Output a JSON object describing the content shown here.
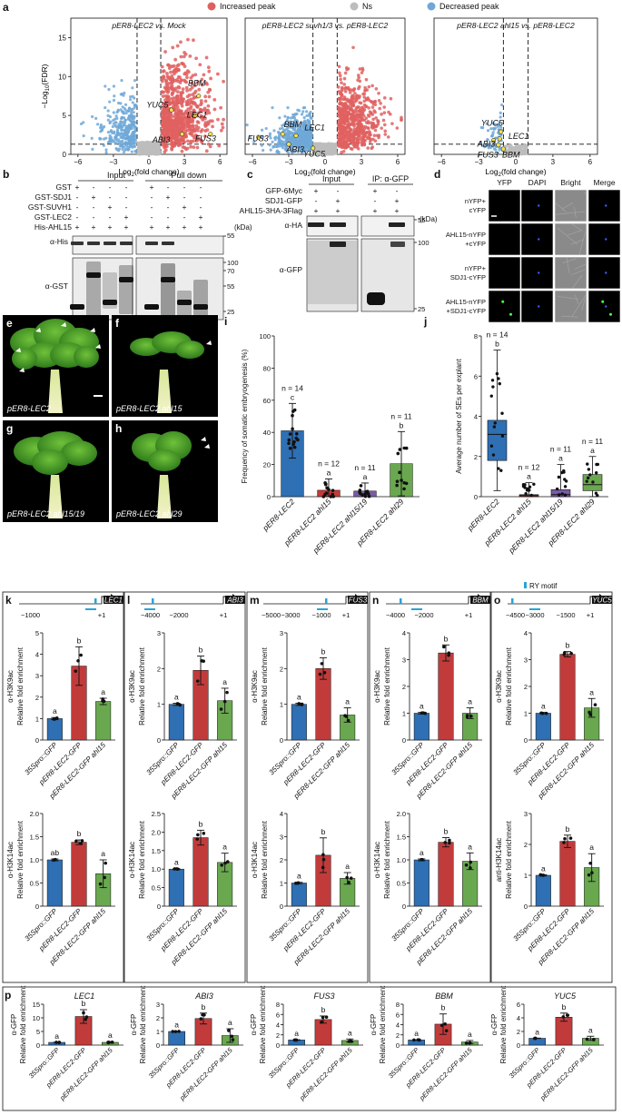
{
  "panels": {
    "a": {
      "label": "a",
      "legend": {
        "increased": "Increased peak",
        "ns": "Ns",
        "decreased": "Decreased peak"
      },
      "colors": {
        "increased": "#e06060",
        "ns": "#bdbdbd",
        "decreased": "#6fa8d8"
      },
      "ylabel_main": "−Log",
      "ylabel_sub": "10",
      "ylabel_tail": "(FDR)",
      "xlabel_main": "Log",
      "xlabel_sub": "2",
      "xlabel_tail": "(fold change)",
      "plots": [
        {
          "title": "pER8-LEC2 vs. Mock",
          "genes": [
            "BBM",
            "YUC5",
            "LEC1",
            "ABI3",
            "FUS3"
          ]
        },
        {
          "title": "pER8-LEC2 suvh1/3 vs. pER8-LEC2",
          "genes": [
            "BBM",
            "LEC1",
            "FUS3",
            "ABI3",
            "YUC5"
          ]
        },
        {
          "title": "pER8-LEC2 ahl15 vs. pER8-LEC2",
          "genes": [
            "YUC5",
            "LEC1",
            "ABI3",
            "FUS3",
            "BBM"
          ]
        }
      ],
      "xticks": [
        "−6",
        "−3",
        "0",
        "3",
        "6"
      ],
      "yticks": [
        "0",
        "5",
        "10",
        "15"
      ]
    },
    "b": {
      "label": "b",
      "rows": [
        "GST",
        "GST-SDJ1",
        "GST-SUVH1",
        "GST-LEC2",
        "His-AHL15"
      ],
      "signs": [
        [
          "+",
          "-",
          "-",
          "-"
        ],
        [
          "-",
          "+",
          "-",
          "-"
        ],
        [
          "-",
          "-",
          "+",
          "-"
        ],
        [
          "-",
          "-",
          "-",
          "+"
        ],
        [
          "+",
          "+",
          "+",
          "+"
        ]
      ],
      "headers": [
        "Input",
        "Pull down"
      ],
      "kda": "(kDa)",
      "blots": [
        "α-His",
        "α-GST"
      ],
      "markers_top": [
        "55"
      ],
      "markers": [
        "100",
        "70",
        "55",
        "25"
      ]
    },
    "c": {
      "label": "c",
      "rows": [
        "GFP-6Myc",
        "SDJ1-GFP",
        "AHL15-3HA-3Flag"
      ],
      "signs": [
        [
          "+",
          "-",
          "+",
          "-"
        ],
        [
          "-",
          "+",
          "-",
          "+"
        ],
        [
          "+",
          "+",
          "+",
          "+"
        ]
      ],
      "headers": [
        "Input",
        "IP: α-GFP"
      ],
      "kda": "(kDa)",
      "blots": [
        "α-HA",
        "α-GFP"
      ],
      "markers": [
        "55",
        "100",
        "25"
      ]
    },
    "d": {
      "label": "d",
      "cols": [
        "YFP",
        "DAPI",
        "Bright",
        "Merge"
      ],
      "rows": [
        [
          "nYFP+",
          "cYFP"
        ],
        [
          "AHL15-nYFP",
          "+cYFP"
        ],
        [
          "nYFP+",
          "SDJ1-cYFP"
        ],
        [
          "AHL15-nYFP",
          "+SDJ1-cYFP"
        ]
      ]
    },
    "efgh": [
      {
        "label": "e",
        "caption": "pER8-LEC2"
      },
      {
        "label": "f",
        "caption": "pER8-LEC2 ahl15"
      },
      {
        "label": "g",
        "caption": "pER8-LEC2 ahl15/19"
      },
      {
        "label": "h",
        "caption": "pER8-LEC2 ahl29"
      }
    ]
  },
  "chart_data": [
    {
      "panel": "i",
      "type": "bar",
      "ylabel": "Frequency of somatic embryogenesis (%)",
      "categories": [
        "pER8-LEC2",
        "pER8-LEC2 ahl15",
        "pER8-LEC2 ahl15/19",
        "pER8-LEC2 ahl29"
      ],
      "values": [
        41,
        4,
        3.5,
        20.5
      ],
      "errors": [
        17,
        7,
        5,
        20
      ],
      "letters": [
        "c",
        "a",
        "a",
        "b"
      ],
      "n": [
        "n = 14",
        "n = 12",
        "n = 11",
        "n = 11"
      ],
      "ylim": [
        0,
        100
      ],
      "yticks": [
        "0",
        "20",
        "40",
        "60",
        "80",
        "100"
      ],
      "colors": [
        "#2f6fb3",
        "#c23b3b",
        "#7b5aa6",
        "#6aa84f"
      ]
    },
    {
      "panel": "j",
      "type": "box",
      "ylabel": "Average number of SEs per explant",
      "categories": [
        "pER8-LEC2",
        "pER8-LEC2 ahl15",
        "pER8-LEC2 ahl15/19",
        "pER8-LEC2 ahl29"
      ],
      "box": [
        [
          1.8,
          3.1,
          3.8
        ],
        [
          0,
          0.05,
          0.1
        ],
        [
          0,
          0.1,
          0.35
        ],
        [
          0.3,
          0.6,
          1.1
        ]
      ],
      "whisker": [
        [
          0.3,
          7.3
        ],
        [
          0,
          0.7
        ],
        [
          0,
          1.6
        ],
        [
          0,
          2
        ]
      ],
      "letters": [
        "b",
        "a",
        "a",
        "a"
      ],
      "n": [
        "n = 14",
        "n = 12",
        "n = 11",
        "n = 11"
      ],
      "ylim": [
        0,
        8
      ],
      "yticks": [
        "0",
        "2",
        "4",
        "6",
        "8"
      ],
      "colors": [
        "#2f6fb3",
        "#c23b3b",
        "#7b5aa6",
        "#6aa84f"
      ]
    },
    {
      "panel": "k-o",
      "type": "bar",
      "categories": [
        "35Spro::GFP",
        "pER8-LEC2-GFP",
        "pER8-LEC2-GFP ahl15"
      ],
      "rymotif": "RY motif",
      "ylabel_sub": "Relative fold enrichment",
      "groups": [
        {
          "label": "k",
          "gene": "LEC1",
          "ticks": [
            "−1000",
            "+1"
          ],
          "h3k9": {
            "ylabel": "α-H3K9ac",
            "ylim": [
              0,
              5
            ],
            "yticks": [
              "0",
              "1",
              "2",
              "3",
              "4",
              "5"
            ],
            "values": [
              1,
              3.45,
              1.8
            ],
            "errors": [
              0.05,
              0.9,
              0.15
            ],
            "letters": [
              "a",
              "b",
              "a"
            ]
          },
          "h3k14": {
            "ylabel": "α-H3K14ac",
            "ylim": [
              0,
              2.0
            ],
            "yticks": [
              "0",
              "0.5",
              "1.0",
              "1.5",
              "2.0"
            ],
            "values": [
              1,
              1.38,
              0.7
            ],
            "errors": [
              0.02,
              0.05,
              0.3
            ],
            "letters": [
              "ab",
              "b",
              "a"
            ]
          }
        },
        {
          "label": "l",
          "gene": "ABI3",
          "ticks": [
            "−4000",
            "−2000",
            "+1"
          ],
          "h3k9": {
            "ylabel": "α-H3K9ac",
            "ylim": [
              0,
              3
            ],
            "yticks": [
              "0",
              "1",
              "2",
              "3"
            ],
            "values": [
              1,
              1.95,
              1.1
            ],
            "errors": [
              0.03,
              0.4,
              0.35
            ],
            "letters": [
              "a",
              "b",
              "a"
            ]
          },
          "h3k14": {
            "ylabel": "α-H3K14ac",
            "ylim": [
              0,
              2.5
            ],
            "yticks": [
              "0",
              "0.5",
              "1.0",
              "1.5",
              "2.0",
              "2.5"
            ],
            "values": [
              1,
              1.85,
              1.18
            ],
            "errors": [
              0.02,
              0.2,
              0.25
            ],
            "letters": [
              "a",
              "b",
              "a"
            ]
          }
        },
        {
          "label": "m",
          "gene": "FUS3",
          "ticks": [
            "−5000",
            "−3000",
            "−1000",
            "+1"
          ],
          "h3k9": {
            "ylabel": "α-H3K9ac",
            "ylim": [
              0,
              3
            ],
            "yticks": [
              "0",
              "1",
              "2",
              "3"
            ],
            "values": [
              1,
              2.0,
              0.7
            ],
            "errors": [
              0.03,
              0.3,
              0.2
            ],
            "letters": [
              "a",
              "b",
              "a"
            ]
          },
          "h3k14": {
            "ylabel": "α-H3K14ac",
            "ylim": [
              0,
              4
            ],
            "yticks": [
              "0",
              "1",
              "2",
              "3",
              "4"
            ],
            "values": [
              1,
              2.2,
              1.2
            ],
            "errors": [
              0.03,
              0.75,
              0.25
            ],
            "letters": [
              "a",
              "b",
              "a"
            ]
          }
        },
        {
          "label": "n",
          "gene": "BBM",
          "ticks": [
            "−4000",
            "−2000",
            "+1"
          ],
          "h3k9": {
            "ylabel": "α-H3K9ac",
            "ylim": [
              0,
              4
            ],
            "yticks": [
              "0",
              "1",
              "2",
              "3",
              "4"
            ],
            "values": [
              1,
              3.25,
              1.0
            ],
            "errors": [
              0.03,
              0.3,
              0.2
            ],
            "letters": [
              "a",
              "b",
              "a"
            ]
          },
          "h3k14": {
            "ylabel": "α-H3K14ac",
            "ylim": [
              0,
              2.0
            ],
            "yticks": [
              "0",
              "0.5",
              "1.0",
              "1.5",
              "2.0"
            ],
            "values": [
              1,
              1.38,
              0.97
            ],
            "errors": [
              0.02,
              0.1,
              0.18
            ],
            "letters": [
              "a",
              "b",
              "a"
            ]
          }
        },
        {
          "label": "o",
          "gene": "YUC5",
          "ticks": [
            "−4500",
            "−3000",
            "−1500",
            "+1"
          ],
          "h3k9": {
            "ylabel": "α-H3K9ac",
            "ylim": [
              0,
              4
            ],
            "yticks": [
              "0",
              "1",
              "2",
              "3",
              "4"
            ],
            "values": [
              1,
              3.2,
              1.2
            ],
            "errors": [
              0.03,
              0.1,
              0.35
            ],
            "letters": [
              "a",
              "b",
              "a"
            ]
          },
          "h3k14": {
            "ylabel": "anti-H3K14ac",
            "ylim": [
              0,
              3
            ],
            "yticks": [
              "0",
              "1",
              "2",
              "3"
            ],
            "values": [
              1,
              2.1,
              1.25
            ],
            "errors": [
              0.02,
              0.2,
              0.45
            ],
            "letters": [
              "a",
              "b",
              "a"
            ]
          }
        }
      ]
    },
    {
      "panel": "p",
      "type": "bar",
      "categories": [
        "35Spro::GFP",
        "pER8-LEC2-GFP",
        "pER8-LEC2-GFP ahl15"
      ],
      "ylabel": "α-GFP",
      "ylabel_sub": "Relative fold enrichment",
      "groups": [
        {
          "gene": "LEC1",
          "ylim": [
            0,
            15
          ],
          "yticks": [
            "0",
            "5",
            "10",
            "15"
          ],
          "values": [
            1,
            10.5,
            1
          ],
          "errors": [
            0.05,
            2.5,
            0.3
          ],
          "letters": [
            "a",
            "b",
            "a"
          ]
        },
        {
          "gene": "ABI3",
          "ylim": [
            0,
            3
          ],
          "yticks": [
            "0",
            "1",
            "2",
            "3"
          ],
          "values": [
            1,
            1.95,
            0.7
          ],
          "errors": [
            0.02,
            0.4,
            0.5
          ],
          "letters": [
            "a",
            "b",
            "a"
          ]
        },
        {
          "gene": "FUS3",
          "ylim": [
            0,
            8
          ],
          "yticks": [
            "0",
            "2",
            "4",
            "6",
            "8"
          ],
          "values": [
            1,
            5,
            0.9
          ],
          "errors": [
            0.05,
            0.7,
            0.3
          ],
          "letters": [
            "a",
            "b",
            "a"
          ]
        },
        {
          "gene": "BBM",
          "ylim": [
            0,
            8
          ],
          "yticks": [
            "0",
            "2",
            "4",
            "6",
            "8"
          ],
          "values": [
            1,
            4.1,
            0.6
          ],
          "errors": [
            0.05,
            2,
            0.3
          ],
          "letters": [
            "a",
            "b",
            "a"
          ]
        },
        {
          "gene": "YUC5",
          "ylim": [
            0,
            6
          ],
          "yticks": [
            "0",
            "2",
            "4",
            "6"
          ],
          "values": [
            1,
            4.1,
            1
          ],
          "errors": [
            0.03,
            0.6,
            0.3
          ],
          "letters": [
            "a",
            "b",
            "a"
          ]
        }
      ]
    }
  ]
}
